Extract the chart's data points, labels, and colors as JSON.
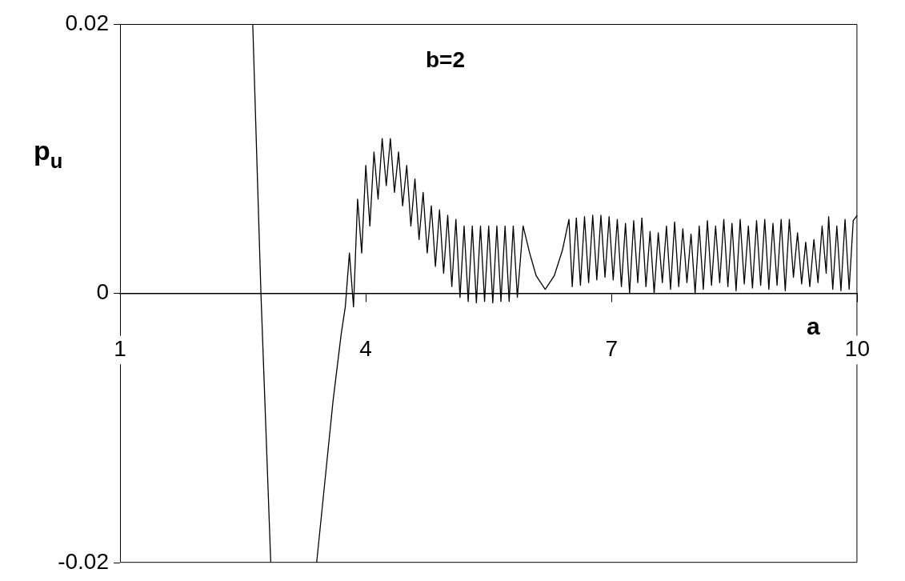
{
  "chart_data": {
    "type": "line",
    "title": "b=2",
    "xlabel": "a",
    "ylabel": "p$_{u}$",
    "xlim": [
      1,
      10
    ],
    "ylim": [
      -0.02,
      0.02
    ],
    "xticks": [
      1,
      4,
      7,
      10
    ],
    "yticks": [
      -0.02,
      0,
      0.02
    ],
    "grid": false,
    "marker": "none",
    "line_style": "solid",
    "series": [
      {
        "color": "#000000",
        "x": [
          2.62,
          2.72,
          2.84,
          3.1,
          3.4,
          3.5,
          3.6,
          3.7,
          3.75,
          3.8,
          3.85,
          3.9,
          3.95,
          4.0,
          4.05,
          4.1,
          4.15,
          4.2,
          4.25,
          4.3,
          4.35,
          4.4,
          4.45,
          4.5,
          4.55,
          4.6,
          4.65,
          4.7,
          4.75,
          4.8,
          4.85,
          4.9,
          4.95,
          5.0,
          5.05,
          5.1,
          5.15,
          5.2,
          5.25,
          5.3,
          5.35,
          5.4,
          5.45,
          5.5,
          5.55,
          5.6,
          5.65,
          5.7,
          5.75,
          5.8,
          5.85,
          5.92,
          6.0,
          6.08,
          6.19,
          6.3,
          6.4,
          6.48,
          6.52,
          6.57,
          6.62,
          6.67,
          6.72,
          6.77,
          6.82,
          6.87,
          6.92,
          6.97,
          7.02,
          7.07,
          7.12,
          7.17,
          7.22,
          7.27,
          7.32,
          7.37,
          7.42,
          7.47,
          7.52,
          7.57,
          7.62,
          7.67,
          7.72,
          7.77,
          7.82,
          7.87,
          7.92,
          7.97,
          8.02,
          8.07,
          8.12,
          8.17,
          8.22,
          8.27,
          8.32,
          8.37,
          8.42,
          8.47,
          8.52,
          8.57,
          8.62,
          8.67,
          8.72,
          8.77,
          8.82,
          8.87,
          8.92,
          8.97,
          9.02,
          9.07,
          9.12,
          9.17,
          9.22,
          9.27,
          9.32,
          9.37,
          9.42,
          9.47,
          9.52,
          9.57,
          9.62,
          9.65,
          9.7,
          9.75,
          9.8,
          9.85,
          9.9,
          9.95,
          10.0
        ],
        "values": [
          0.02,
          0,
          -0.02,
          null,
          -0.02,
          -0.014,
          -0.008,
          -0.003,
          -0.001,
          0.003,
          -0.001,
          0.007,
          0.003,
          0.0095,
          0.005,
          0.0105,
          0.007,
          0.0115,
          0.008,
          0.0115,
          0.0075,
          0.0105,
          0.0065,
          0.0095,
          0.005,
          0.0085,
          0.004,
          0.0075,
          0.003,
          0.0065,
          0.002,
          0.0062,
          0.0015,
          0.0058,
          0.0005,
          0.0055,
          -0.0003,
          0.005,
          -0.0006,
          0.005,
          -0.0007,
          0.005,
          -0.0006,
          0.005,
          -0.0007,
          0.005,
          -0.0006,
          0.005,
          -0.0006,
          0.005,
          -0.0003,
          0.005,
          0.003,
          0.0013,
          0.0003,
          0.0013,
          0.0032,
          0.0055,
          0.0005,
          0.0056,
          0.0006,
          0.0057,
          0.0008,
          0.0058,
          0.001,
          0.0058,
          0.0012,
          0.0057,
          0.001,
          0.0055,
          0.0005,
          0.0052,
          0,
          0.0054,
          0.0008,
          0.0056,
          0.0005,
          0.0046,
          0,
          0.0045,
          0.0008,
          0.005,
          0.0003,
          0.0053,
          0.0005,
          0.0048,
          0.0008,
          0.0044,
          0,
          0.005,
          0.0003,
          0.0054,
          0.0006,
          0.005,
          0.0008,
          0.0055,
          0.0005,
          0.0052,
          0.0002,
          0.0055,
          0.0007,
          0.005,
          0.0004,
          0.0054,
          0.0006,
          0.0055,
          0.0003,
          0.0052,
          0.0006,
          0.0055,
          0.0002,
          0.0055,
          0.0012,
          0.0045,
          0.0007,
          0.0038,
          0.0005,
          0.004,
          0.0008,
          0.005,
          0.0015,
          0.0057,
          0.0003,
          0.005,
          0.0002,
          0.0055,
          0.0003,
          0.0054,
          0.0058
        ]
      }
    ]
  }
}
